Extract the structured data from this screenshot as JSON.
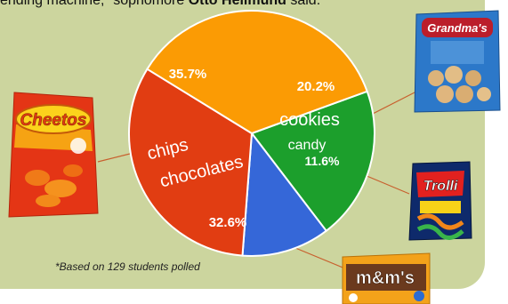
{
  "header": {
    "quote_prefix": "ending machine,” sophomore ",
    "quote_name": "Otto Hellmund",
    "quote_suffix": " said."
  },
  "chart_data": {
    "type": "pie",
    "slices": [
      {
        "label": "cookies",
        "value": 20.2,
        "value_label": "20.2%",
        "color": "#1c9f2c"
      },
      {
        "label": "candy",
        "value": 11.6,
        "value_label": "11.6%",
        "color": "#3567d8"
      },
      {
        "label": "chocolates",
        "value": 32.6,
        "value_label": "32.6%",
        "color": "#e13d12"
      },
      {
        "label": "chips",
        "value": 35.7,
        "value_label": "35.7%",
        "color": "#fb9b04"
      }
    ],
    "start_angle_deg": 70,
    "direction": "clockwise",
    "footnote": "*Based on 129 students polled"
  },
  "images": {
    "cheetos": {
      "icon": "cheetos-bag-icon",
      "text": "Cheetos"
    },
    "grandmas": {
      "icon": "grandmas-cookies-bag-icon",
      "text": "Grandma's"
    },
    "trolli": {
      "icon": "trolli-bag-icon",
      "text": "Trolli"
    },
    "mms": {
      "icon": "mms-bag-icon",
      "text": "m&m's"
    }
  }
}
